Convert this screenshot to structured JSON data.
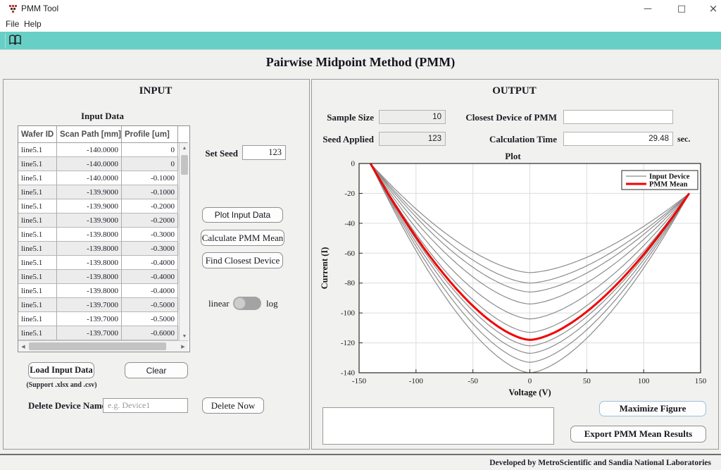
{
  "window": {
    "title": "PMM Tool",
    "controls": {
      "minimize": "—",
      "maximize": "□",
      "close": "×"
    }
  },
  "menu": {
    "items": [
      {
        "label": "File"
      },
      {
        "label": "Help"
      }
    ]
  },
  "toolbar": {
    "icons": [
      {
        "name": "open-book-icon"
      }
    ]
  },
  "app_title": "Pairwise Midpoint Method (PMM)",
  "input_panel": {
    "header": "INPUT",
    "table_title": "Input Data",
    "table": {
      "columns": [
        "Wafer ID",
        "Scan Path [mm]",
        "Profile [um]"
      ],
      "rows": [
        [
          "line5.1",
          "-140.0000",
          "0"
        ],
        [
          "line5.1",
          "-140.0000",
          "0"
        ],
        [
          "line5.1",
          "-140.0000",
          "-0.1000"
        ],
        [
          "line5.1",
          "-139.9000",
          "-0.1000"
        ],
        [
          "line5.1",
          "-139.9000",
          "-0.2000"
        ],
        [
          "line5.1",
          "-139.9000",
          "-0.2000"
        ],
        [
          "line5.1",
          "-139.8000",
          "-0.3000"
        ],
        [
          "line5.1",
          "-139.8000",
          "-0.3000"
        ],
        [
          "line5.1",
          "-139.8000",
          "-0.4000"
        ],
        [
          "line5.1",
          "-139.8000",
          "-0.4000"
        ],
        [
          "line5.1",
          "-139.8000",
          "-0.4000"
        ],
        [
          "line5.1",
          "-139.7000",
          "-0.5000"
        ],
        [
          "line5.1",
          "-139.7000",
          "-0.5000"
        ],
        [
          "line5.1",
          "-139.7000",
          "-0.6000"
        ]
      ]
    },
    "set_seed": {
      "label": "Set Seed",
      "value": "123"
    },
    "buttons": {
      "plot_input_data": "Plot Input Data",
      "calculate_pmm_mean": "Calculate PMM Mean",
      "find_closest_device": "Find Closest Device"
    },
    "scale_toggle": {
      "left": "linear",
      "right": "log",
      "selected": "linear"
    },
    "load_button": "Load Input Data",
    "load_caption": "(Support .xlsx and .csv)",
    "clear_button": "Clear",
    "delete_row": {
      "label": "Delete Device Name",
      "placeholder": "e.g. Device1",
      "button": "Delete Now"
    }
  },
  "output_panel": {
    "header": "OUTPUT",
    "fields": {
      "sample_size": {
        "label": "Sample Size",
        "value": "10"
      },
      "seed_applied": {
        "label": "Seed Applied",
        "value": "123"
      },
      "closest_device": {
        "label": "Closest Device of PMM",
        "value": ""
      },
      "calculation_time": {
        "label": "Calculation Time",
        "value": "29.48",
        "unit": "sec."
      }
    },
    "status_box_text": "",
    "buttons": {
      "maximize_figure": "Maximize Figure",
      "export_results": "Export PMM Mean Results"
    }
  },
  "footer": {
    "credit": "Developed by MetroScientific and Sandia National Laboratories"
  },
  "colors": {
    "toolbar_teal": "#68cfc6",
    "pmm_mean_red": "#f20000",
    "input_device_gray": "#8c8c8c",
    "grid_gray": "#dcdcdc",
    "focus_blue": "#9cc1e0"
  },
  "chart_data": {
    "type": "line",
    "title": "Plot",
    "xlabel": "Voltage (V)",
    "ylabel": "Current (I)",
    "xlim": [
      -150,
      150
    ],
    "ylim": [
      -140,
      0
    ],
    "x_ticks": [
      -150,
      -100,
      -50,
      0,
      50,
      100,
      150
    ],
    "y_ticks": [
      0,
      -20,
      -40,
      -60,
      -80,
      -100,
      -120,
      -140
    ],
    "grid": true,
    "legend": {
      "position": "top-right",
      "entries": [
        {
          "label": "Input Device",
          "color": "#8c8c8c",
          "width": 1.2
        },
        {
          "label": "PMM Mean",
          "color": "#f20000",
          "width": 3
        }
      ]
    },
    "curve_model": {
      "x_start": -140,
      "x_end": 140,
      "y_at_start": 0,
      "y_at_end": -20,
      "exponent": 1.6,
      "note": "each curve runs from (-140,0) to a minimum at x=0 then up to (140,-20)"
    },
    "series": [
      {
        "name": "Input Device",
        "kind": "family",
        "minima_at_x0": [
          -73,
          -80,
          -86,
          -94,
          -104,
          -113,
          -122,
          -127,
          -133,
          -140
        ]
      },
      {
        "name": "PMM Mean",
        "kind": "single",
        "min_at_x0": -118
      }
    ]
  }
}
